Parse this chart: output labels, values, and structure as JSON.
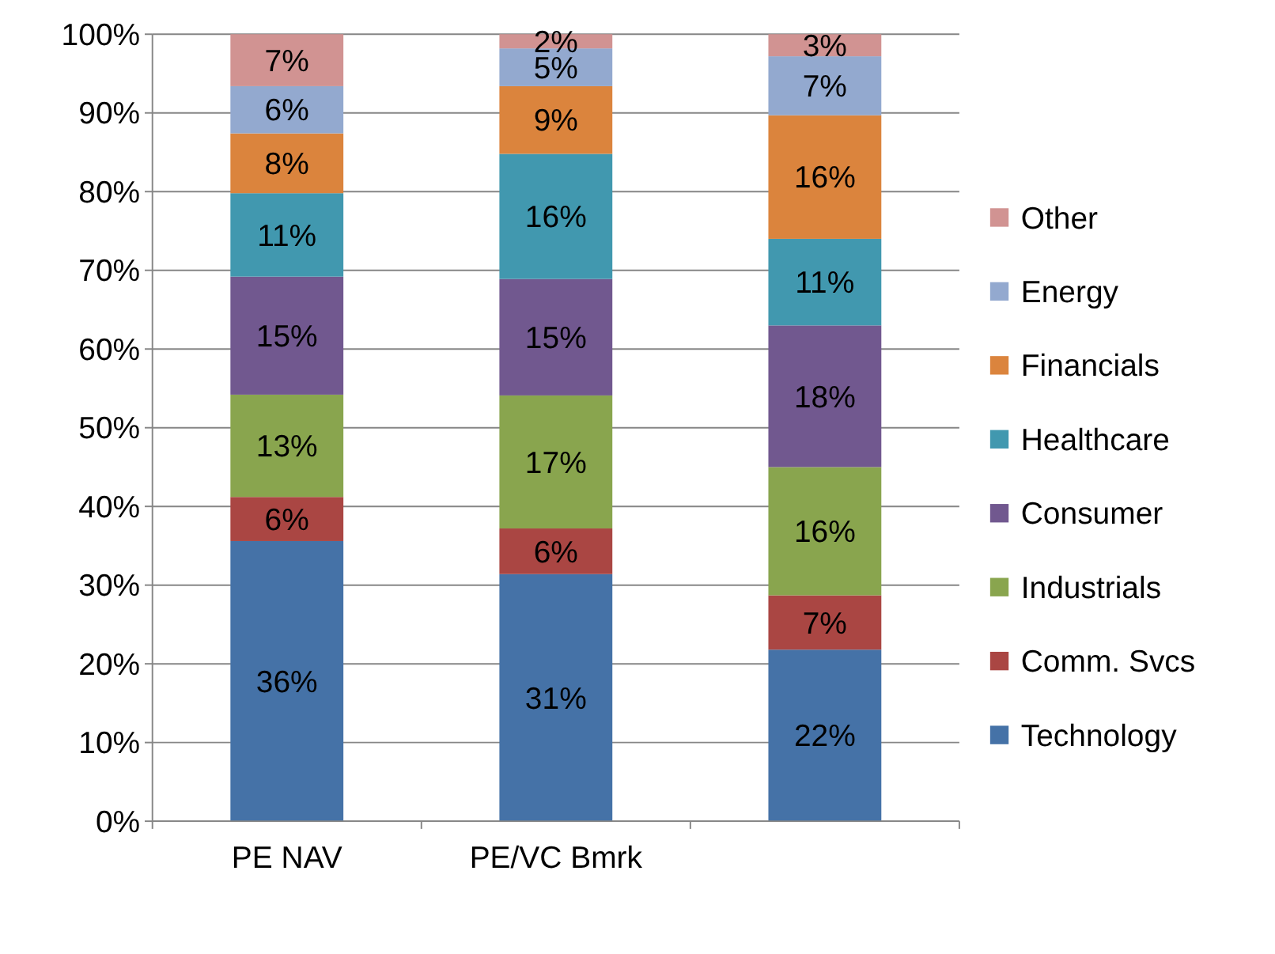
{
  "chart_data": {
    "type": "bar",
    "stacked": true,
    "categories": [
      "PE NAV",
      "PE/VC Bmrk",
      null
    ],
    "series": [
      {
        "name": "Technology",
        "color": "#4572a7",
        "values": [
          35.6,
          31.4,
          21.8
        ],
        "value_labels": [
          "36%",
          "31%",
          "22%"
        ]
      },
      {
        "name": "Comm. Svcs",
        "color": "#aa4643",
        "values": [
          5.6,
          5.8,
          6.9
        ],
        "value_labels": [
          "6%",
          "6%",
          "7%"
        ]
      },
      {
        "name": "Industrials",
        "color": "#89a54e",
        "values": [
          13,
          16.9,
          16.3
        ],
        "value_labels": [
          "13%",
          "17%",
          "16%"
        ]
      },
      {
        "name": "Consumer",
        "color": "#71588f",
        "values": [
          15,
          14.8,
          18
        ],
        "value_labels": [
          "15%",
          "15%",
          "18%"
        ]
      },
      {
        "name": "Healthcare",
        "color": "#4198af",
        "values": [
          10.6,
          15.9,
          11
        ],
        "value_labels": [
          "11%",
          "16%",
          "11%"
        ]
      },
      {
        "name": "Financials",
        "color": "#db843d",
        "values": [
          7.6,
          8.6,
          15.7
        ],
        "value_labels": [
          "8%",
          "9%",
          "16%"
        ]
      },
      {
        "name": "Energy",
        "color": "#93a9cf",
        "values": [
          6,
          4.8,
          7.5
        ],
        "value_labels": [
          "6%",
          "5%",
          "7%"
        ]
      },
      {
        "name": "Other",
        "color": "#d19392",
        "values": [
          6.6,
          1.8,
          2.8
        ],
        "value_labels": [
          "7%",
          "2%",
          "3%"
        ]
      }
    ],
    "ylim": [
      0,
      100
    ],
    "yticks": [
      {
        "value": 0,
        "label": "0%"
      },
      {
        "value": 10,
        "label": "10%"
      },
      {
        "value": 20,
        "label": "20%"
      },
      {
        "value": 30,
        "label": "30%"
      },
      {
        "value": 40,
        "label": "40%"
      },
      {
        "value": 50,
        "label": "50%"
      },
      {
        "value": 60,
        "label": "60%"
      },
      {
        "value": 70,
        "label": "70%"
      },
      {
        "value": 80,
        "label": "80%"
      },
      {
        "value": 90,
        "label": "90%"
      },
      {
        "value": 100,
        "label": "100%"
      }
    ],
    "grid": "y",
    "legend": "right"
  }
}
